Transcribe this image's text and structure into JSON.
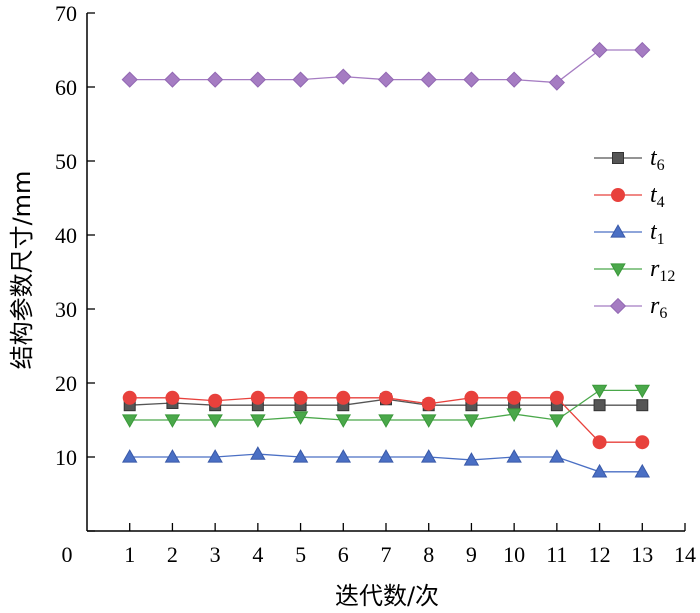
{
  "chart_data": {
    "type": "line",
    "xlabel": "迭代数/次",
    "ylabel": "结构参数尺寸/mm",
    "xlim": [
      0,
      14
    ],
    "ylim": [
      0,
      70
    ],
    "xticks": [
      0,
      1,
      2,
      3,
      4,
      5,
      6,
      7,
      8,
      9,
      10,
      11,
      12,
      13,
      14
    ],
    "yticks": [
      0,
      10,
      20,
      30,
      40,
      50,
      60,
      70
    ],
    "grid": false,
    "legend_position": "right",
    "x": [
      1,
      2,
      3,
      4,
      5,
      6,
      7,
      8,
      9,
      10,
      11,
      12,
      13
    ],
    "series": [
      {
        "name": "t",
        "sub": "6",
        "marker": "square",
        "color": "#555555",
        "edge": "#333333",
        "values": [
          17,
          17.3,
          17,
          17,
          17,
          17,
          17.8,
          17,
          17,
          17,
          17,
          17,
          17
        ]
      },
      {
        "name": "t",
        "sub": "4",
        "marker": "circle",
        "color": "#e8413c",
        "edge": "#e8413c",
        "values": [
          18,
          18,
          17.6,
          18,
          18,
          18,
          18,
          17.2,
          18,
          18,
          18,
          12,
          12
        ]
      },
      {
        "name": "t",
        "sub": "1",
        "marker": "triangle-up",
        "color": "#4a6fc4",
        "edge": "#3a5aa8",
        "values": [
          10,
          10,
          10,
          10.4,
          10,
          10,
          10,
          10,
          9.6,
          10,
          10,
          8,
          8
        ]
      },
      {
        "name": "r",
        "sub": "12",
        "marker": "triangle-down",
        "color": "#4aa84a",
        "edge": "#3a983a",
        "values": [
          15,
          15,
          15,
          15,
          15.4,
          15,
          15,
          15,
          15,
          15.8,
          15,
          19,
          19
        ]
      },
      {
        "name": "r",
        "sub": "6",
        "marker": "diamond",
        "color": "#a57cc2",
        "edge": "#9268b3",
        "values": [
          61,
          61,
          61,
          61,
          61,
          61.4,
          61,
          61,
          61,
          61,
          60.6,
          65,
          65
        ]
      }
    ]
  }
}
